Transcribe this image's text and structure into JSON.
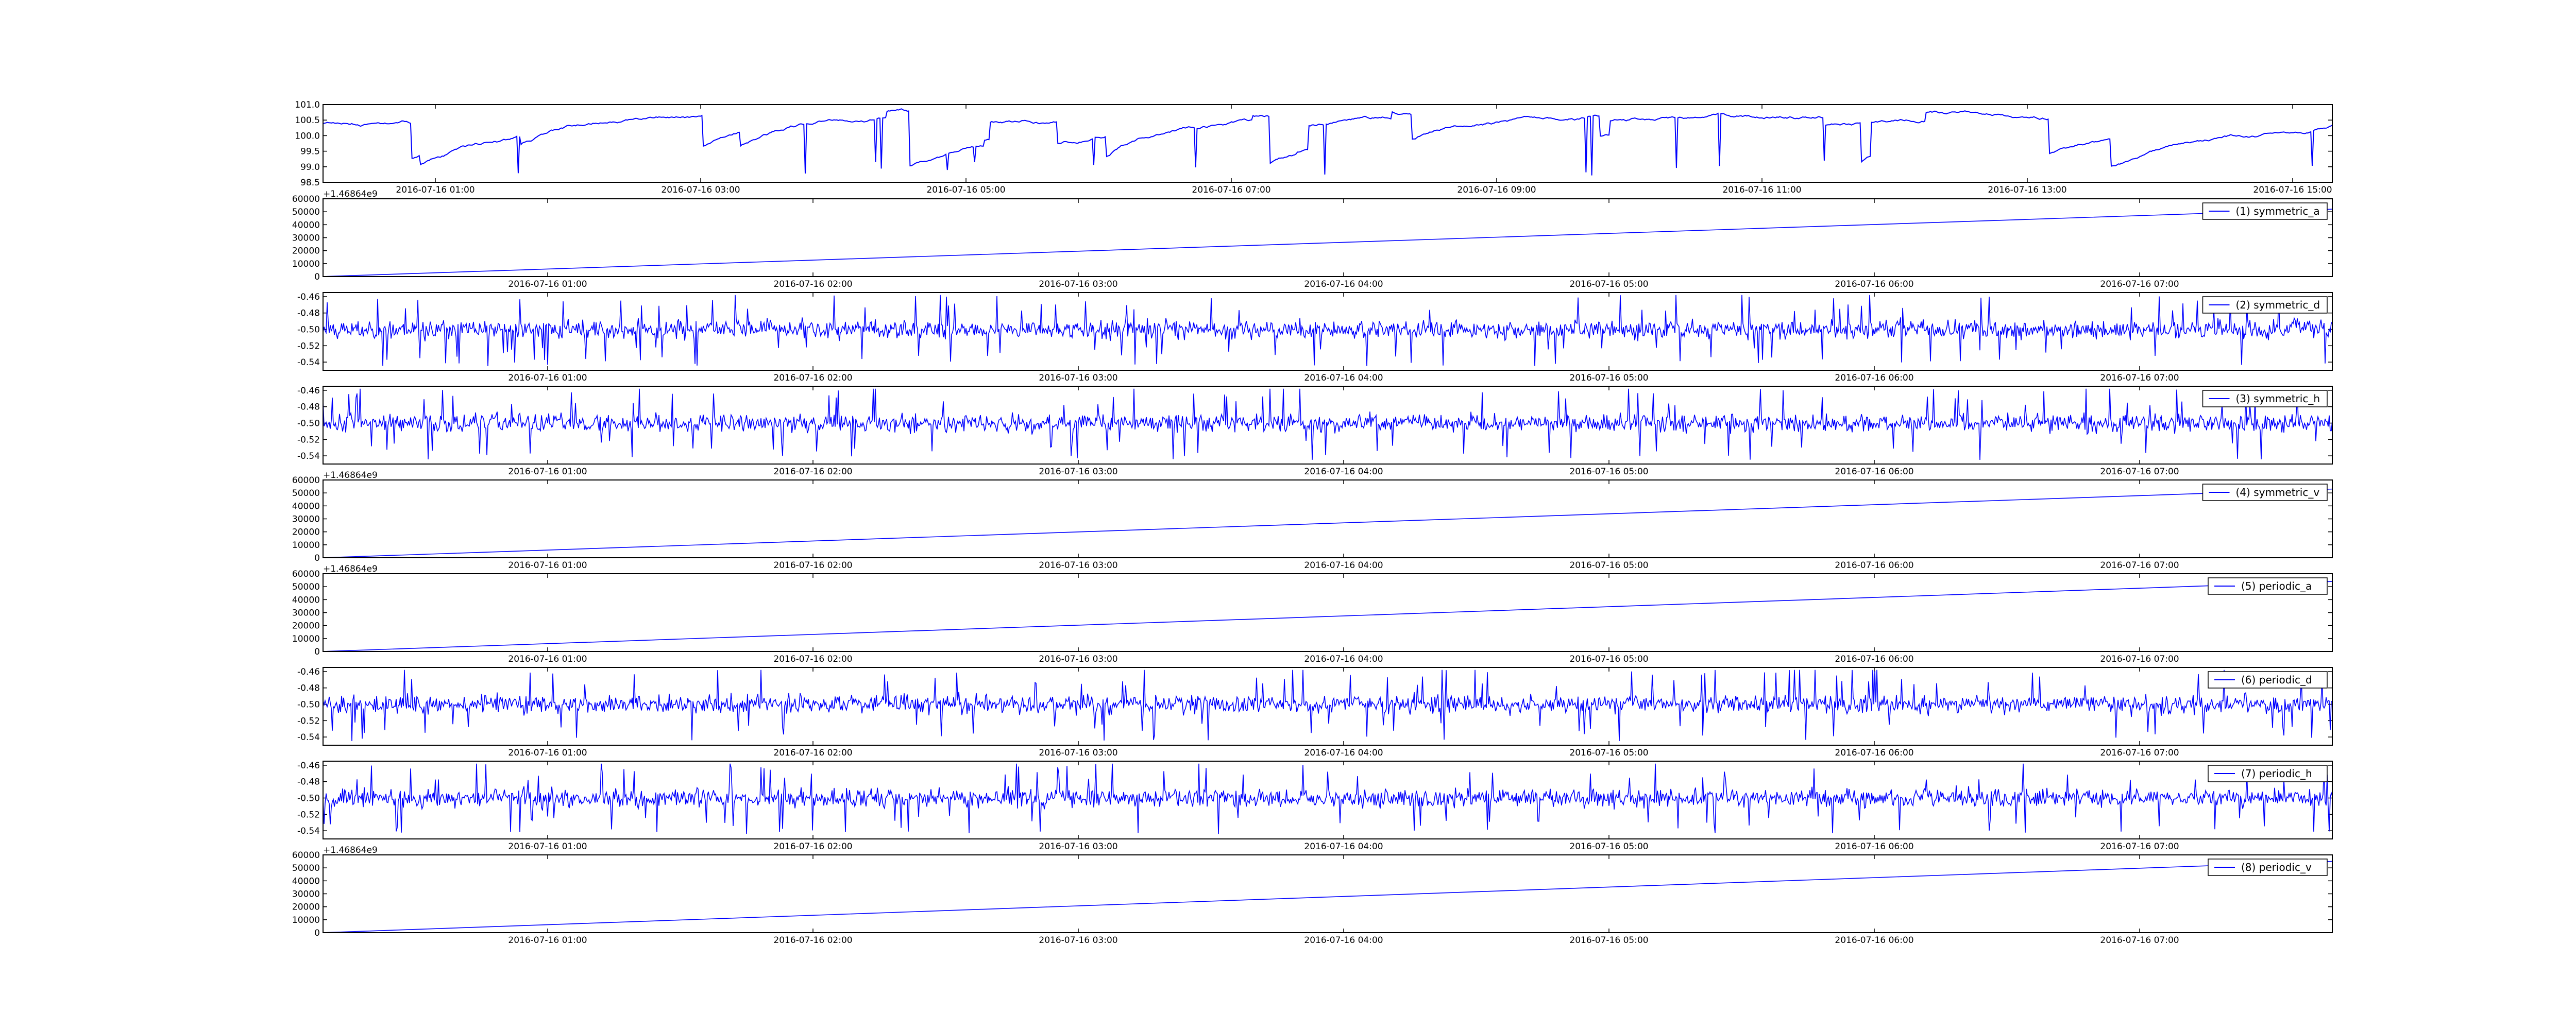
{
  "chart_data": [
    {
      "type": "line",
      "series": [
        {
          "values_kind": "trace",
          "shape": "drifting",
          "base": 100.0,
          "amp": 0.55,
          "lo": 98.6,
          "hi": 100.9,
          "seed": 11,
          "color": "#0000ff"
        }
      ],
      "ylim": [
        98.5,
        101.0
      ],
      "yticks": [
        "101.0",
        "100.5",
        "100.0",
        "99.5",
        "99.0",
        "98.5"
      ],
      "xticks": [
        "2016-07-16 01:00",
        "2016-07-16 03:00",
        "2016-07-16 05:00",
        "2016-07-16 07:00",
        "2016-07-16 09:00",
        "2016-07-16 11:00",
        "2016-07-16 13:00",
        "2016-07-16 15:00"
      ],
      "legend": ""
    },
    {
      "type": "line",
      "series": [
        {
          "name": "(1) symmetric_a",
          "values_kind": "ramp",
          "x": [
            0,
            1
          ],
          "values": [
            0,
            52000
          ],
          "color": "#0000ff"
        }
      ],
      "ylim": [
        0,
        60000
      ],
      "yticks": [
        "60000",
        "50000",
        "40000",
        "30000",
        "20000",
        "10000",
        "0"
      ],
      "offset": "+1.46864e9",
      "xticks": [
        "2016-07-16 01:00",
        "2016-07-16 02:00",
        "2016-07-16 03:00",
        "2016-07-16 04:00",
        "2016-07-16 05:00",
        "2016-07-16 06:00",
        "2016-07-16 07:00"
      ],
      "legend": "(1) symmetric_a"
    },
    {
      "type": "line",
      "series": [
        {
          "name": "(2) symmetric_d",
          "values_kind": "noise",
          "base": -0.5,
          "amp": 0.018,
          "lo": -0.545,
          "hi": -0.458,
          "seed": 23,
          "color": "#0000ff"
        }
      ],
      "ylim": [
        -0.55,
        -0.455
      ],
      "yticks": [
        "-0.46",
        "-0.48",
        "-0.50",
        "-0.52",
        "-0.54"
      ],
      "xticks": [
        "2016-07-16 01:00",
        "2016-07-16 02:00",
        "2016-07-16 03:00",
        "2016-07-16 04:00",
        "2016-07-16 05:00",
        "2016-07-16 06:00",
        "2016-07-16 07:00"
      ],
      "legend": "(2) symmetric_d"
    },
    {
      "type": "line",
      "series": [
        {
          "name": "(3) symmetric_h",
          "values_kind": "noise",
          "base": -0.5,
          "amp": 0.018,
          "lo": -0.545,
          "hi": -0.458,
          "seed": 37,
          "color": "#0000ff"
        }
      ],
      "ylim": [
        -0.55,
        -0.455
      ],
      "yticks": [
        "-0.46",
        "-0.48",
        "-0.50",
        "-0.52",
        "-0.54"
      ],
      "xticks": [
        "2016-07-16 01:00",
        "2016-07-16 02:00",
        "2016-07-16 03:00",
        "2016-07-16 04:00",
        "2016-07-16 05:00",
        "2016-07-16 06:00",
        "2016-07-16 07:00"
      ],
      "legend": "(3) symmetric_h"
    },
    {
      "type": "line",
      "series": [
        {
          "name": "(4) symmetric_v",
          "values_kind": "ramp",
          "x": [
            0,
            1
          ],
          "values": [
            0,
            53000
          ],
          "color": "#0000ff"
        }
      ],
      "ylim": [
        0,
        60000
      ],
      "yticks": [
        "60000",
        "50000",
        "40000",
        "30000",
        "20000",
        "10000",
        "0"
      ],
      "offset": "+1.46864e9",
      "xticks": [
        "2016-07-16 01:00",
        "2016-07-16 02:00",
        "2016-07-16 03:00",
        "2016-07-16 04:00",
        "2016-07-16 05:00",
        "2016-07-16 06:00",
        "2016-07-16 07:00"
      ],
      "legend": "(4) symmetric_v"
    },
    {
      "type": "line",
      "series": [
        {
          "name": "(5) periodic_a",
          "values_kind": "ramp",
          "x": [
            0,
            1
          ],
          "values": [
            0,
            54000
          ],
          "color": "#0000ff"
        }
      ],
      "ylim": [
        0,
        60000
      ],
      "yticks": [
        "60000",
        "50000",
        "40000",
        "30000",
        "20000",
        "10000",
        "0"
      ],
      "offset": "+1.46864e9",
      "xticks": [
        "2016-07-16 01:00",
        "2016-07-16 02:00",
        "2016-07-16 03:00",
        "2016-07-16 04:00",
        "2016-07-16 05:00",
        "2016-07-16 06:00",
        "2016-07-16 07:00"
      ],
      "legend": "(5) periodic_a"
    },
    {
      "type": "line",
      "series": [
        {
          "name": "(6) periodic_d",
          "values_kind": "noise",
          "base": -0.5,
          "amp": 0.018,
          "lo": -0.545,
          "hi": -0.458,
          "seed": 51,
          "color": "#0000ff"
        }
      ],
      "ylim": [
        -0.55,
        -0.455
      ],
      "yticks": [
        "-0.46",
        "-0.48",
        "-0.50",
        "-0.52",
        "-0.54"
      ],
      "xticks": [
        "2016-07-16 01:00",
        "2016-07-16 02:00",
        "2016-07-16 03:00",
        "2016-07-16 04:00",
        "2016-07-16 05:00",
        "2016-07-16 06:00",
        "2016-07-16 07:00"
      ],
      "legend": "(6) periodic_d"
    },
    {
      "type": "line",
      "series": [
        {
          "name": "(7) periodic_h",
          "values_kind": "noise",
          "base": -0.5,
          "amp": 0.018,
          "lo": -0.545,
          "hi": -0.458,
          "seed": 67,
          "color": "#0000ff"
        }
      ],
      "ylim": [
        -0.55,
        -0.455
      ],
      "yticks": [
        "-0.46",
        "-0.48",
        "-0.50",
        "-0.52",
        "-0.54"
      ],
      "xticks": [
        "2016-07-16 01:00",
        "2016-07-16 02:00",
        "2016-07-16 03:00",
        "2016-07-16 04:00",
        "2016-07-16 05:00",
        "2016-07-16 06:00",
        "2016-07-16 07:00"
      ],
      "legend": "(7) periodic_h"
    },
    {
      "type": "line",
      "series": [
        {
          "name": "(8) periodic_v",
          "values_kind": "ramp",
          "x": [
            0,
            1
          ],
          "values": [
            0,
            55000
          ],
          "color": "#0000ff"
        }
      ],
      "ylim": [
        0,
        60000
      ],
      "yticks": [
        "60000",
        "50000",
        "40000",
        "30000",
        "20000",
        "10000",
        "0"
      ],
      "offset": "+1.46864e9",
      "xticks": [
        "2016-07-16 01:00",
        "2016-07-16 02:00",
        "2016-07-16 03:00",
        "2016-07-16 04:00",
        "2016-07-16 05:00",
        "2016-07-16 06:00",
        "2016-07-16 07:00"
      ],
      "legend": "(8) periodic_v"
    }
  ]
}
